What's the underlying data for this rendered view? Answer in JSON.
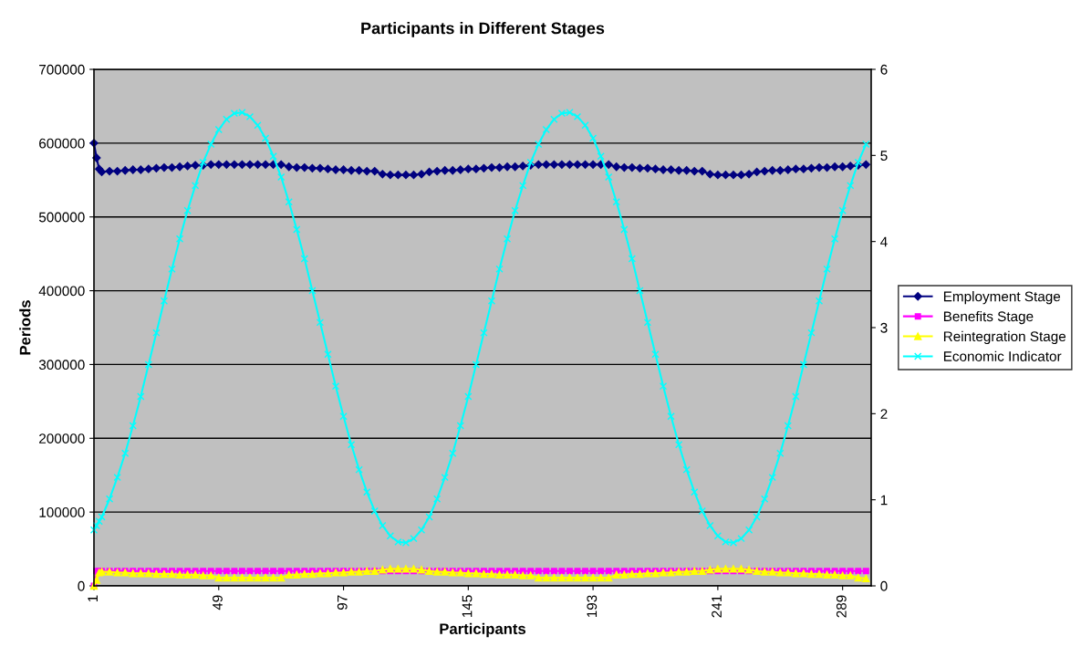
{
  "chart_data": {
    "type": "line",
    "title": "Participants in Different Stages",
    "xlabel": "Participants",
    "ylabel": "Periods",
    "x": [
      1,
      2,
      3,
      4,
      7,
      10,
      13,
      16,
      19,
      22,
      25,
      28,
      31,
      34,
      37,
      40,
      43,
      46,
      49,
      52,
      55,
      58,
      61,
      64,
      67,
      70,
      73,
      76,
      79,
      82,
      85,
      88,
      91,
      94,
      97,
      100,
      103,
      106,
      109,
      112,
      115,
      118,
      121,
      124,
      127,
      130,
      133,
      136,
      139,
      142,
      145,
      148,
      151,
      154,
      157,
      160,
      163,
      166,
      169,
      172,
      175,
      178,
      181,
      184,
      187,
      190,
      193,
      196,
      199,
      202,
      205,
      208,
      211,
      214,
      217,
      220,
      223,
      226,
      229,
      232,
      235,
      238,
      241,
      244,
      247,
      250,
      253,
      256,
      259,
      262,
      265,
      268,
      271,
      274,
      277,
      280,
      283,
      286,
      289,
      292,
      295,
      298
    ],
    "xlim": [
      1,
      300
    ],
    "xticks": [
      1,
      49,
      97,
      145,
      193,
      241,
      289
    ],
    "ylim": [
      0,
      700000
    ],
    "yticks": [
      0,
      100000,
      200000,
      300000,
      400000,
      500000,
      600000,
      700000
    ],
    "y2lim": [
      0,
      6
    ],
    "y2ticks": [
      0,
      1,
      2,
      3,
      4,
      5,
      6
    ],
    "grid": "y",
    "legend": "right",
    "line_style": "solid",
    "series": [
      {
        "name": "Employment Stage",
        "color": "#000080",
        "marker": "diamond",
        "values": [
          600000,
          580000,
          565000,
          561000,
          562000,
          562000,
          563000,
          564000,
          564000,
          565000,
          566000,
          567000,
          567000,
          568000,
          569000,
          570000,
          570000,
          571000,
          571000,
          571000,
          571000,
          571000,
          571000,
          571000,
          571000,
          571000,
          571000,
          568000,
          567000,
          567000,
          566000,
          566000,
          565000,
          564000,
          564000,
          563000,
          563000,
          562000,
          562000,
          558000,
          557000,
          557000,
          557000,
          557000,
          558000,
          561000,
          562000,
          563000,
          563000,
          564000,
          565000,
          565000,
          566000,
          567000,
          567000,
          568000,
          568000,
          569000,
          570000,
          571000,
          571000,
          571000,
          571000,
          571000,
          571000,
          571000,
          571000,
          571000,
          571000,
          568000,
          567000,
          567000,
          566000,
          566000,
          565000,
          564000,
          564000,
          563000,
          563000,
          562000,
          562000,
          558000,
          557000,
          557000,
          557000,
          557000,
          558000,
          561000,
          562000,
          563000,
          563000,
          564000,
          565000,
          565000,
          566000,
          567000,
          567000,
          568000,
          568000,
          569000,
          570000,
          571000
        ]
      },
      {
        "name": "Benefits Stage",
        "color": "#ff00ff",
        "marker": "square",
        "values": [
          0,
          20000,
          20000,
          20000,
          20000,
          20000,
          20000,
          20000,
          20000,
          20000,
          20000,
          20000,
          20000,
          20000,
          20000,
          20000,
          20000,
          20000,
          20000,
          20000,
          20000,
          20000,
          20000,
          20000,
          20000,
          20000,
          20000,
          20000,
          20000,
          20000,
          20000,
          20000,
          20000,
          20000,
          20000,
          20000,
          20000,
          20000,
          20000,
          20000,
          20000,
          20000,
          20000,
          20000,
          20000,
          20000,
          20000,
          20000,
          20000,
          20000,
          20000,
          20000,
          20000,
          20000,
          20000,
          20000,
          20000,
          20000,
          20000,
          20000,
          20000,
          20000,
          20000,
          20000,
          20000,
          20000,
          20000,
          20000,
          20000,
          20000,
          20000,
          20000,
          20000,
          20000,
          20000,
          20000,
          20000,
          20000,
          20000,
          20000,
          20000,
          20000,
          20000,
          20000,
          20000,
          20000,
          20000,
          20000,
          20000,
          20000,
          20000,
          20000,
          20000,
          20000,
          20000,
          20000,
          20000,
          20000,
          20000,
          20000,
          20000,
          20000
        ]
      },
      {
        "name": "Reintegration Stage",
        "color": "#ffff00",
        "marker": "triangle",
        "values": [
          0,
          8000,
          18000,
          19000,
          19000,
          18000,
          18000,
          17000,
          17000,
          17000,
          16000,
          16000,
          16000,
          15000,
          15000,
          15000,
          14000,
          14000,
          11000,
          11000,
          11000,
          11000,
          11000,
          11000,
          11000,
          11000,
          11000,
          15000,
          15000,
          16000,
          16000,
          17000,
          17000,
          18000,
          18000,
          19000,
          19000,
          20000,
          20000,
          22000,
          23000,
          23000,
          23000,
          23000,
          22000,
          20000,
          19000,
          19000,
          18000,
          18000,
          17000,
          17000,
          16000,
          16000,
          15000,
          15000,
          15000,
          14000,
          14000,
          11000,
          11000,
          11000,
          11000,
          11000,
          11000,
          11000,
          11000,
          11000,
          11000,
          15000,
          15000,
          16000,
          16000,
          17000,
          17000,
          18000,
          18000,
          19000,
          19000,
          20000,
          20000,
          22000,
          23000,
          23000,
          23000,
          23000,
          22000,
          20000,
          19000,
          19000,
          18000,
          18000,
          17000,
          17000,
          16000,
          16000,
          15000,
          15000,
          14000,
          14000,
          11000,
          10000
        ]
      },
      {
        "name": "Economic Indicator",
        "color": "#00ffff",
        "marker": "cross",
        "axis": "y2",
        "values": [
          0.65,
          0.7,
          0.75,
          0.8,
          1.01,
          1.26,
          1.54,
          1.86,
          2.2,
          2.57,
          2.94,
          3.31,
          3.68,
          4.03,
          4.36,
          4.65,
          4.92,
          5.13,
          5.3,
          5.42,
          5.49,
          5.5,
          5.45,
          5.35,
          5.2,
          4.99,
          4.75,
          4.46,
          4.14,
          3.8,
          3.43,
          3.06,
          2.69,
          2.32,
          1.97,
          1.64,
          1.35,
          1.09,
          0.87,
          0.7,
          0.58,
          0.51,
          0.5,
          0.55,
          0.65,
          0.8,
          1.01,
          1.26,
          1.54,
          1.86,
          2.2,
          2.57,
          2.94,
          3.31,
          3.68,
          4.03,
          4.36,
          4.65,
          4.92,
          5.13,
          5.3,
          5.42,
          5.49,
          5.5,
          5.45,
          5.35,
          5.2,
          4.99,
          4.75,
          4.46,
          4.14,
          3.8,
          3.43,
          3.06,
          2.69,
          2.32,
          1.97,
          1.64,
          1.35,
          1.09,
          0.87,
          0.7,
          0.58,
          0.51,
          0.5,
          0.55,
          0.65,
          0.8,
          1.01,
          1.26,
          1.54,
          1.86,
          2.2,
          2.57,
          2.94,
          3.31,
          3.68,
          4.03,
          4.36,
          4.65,
          4.92,
          5.13
        ]
      }
    ]
  }
}
